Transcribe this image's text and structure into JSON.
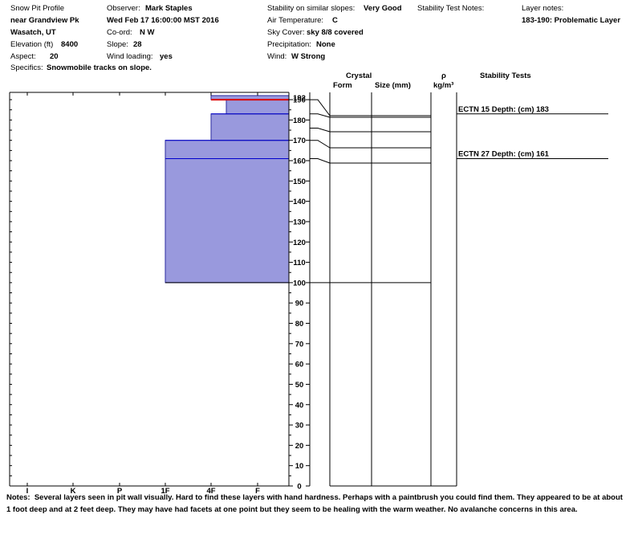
{
  "header": {
    "col1": [
      "Snow Pit Profile",
      "near Grandview Pk",
      "Wasatch, UT"
    ],
    "elevation_label": "Elevation (ft)",
    "elevation": "8400",
    "aspect_label": "Aspect:",
    "aspect": "20",
    "specifics_label": "Specifics:",
    "specifics": "Snowmobile tracks on slope.",
    "observer_label": "Observer:",
    "observer": "Mark Staples",
    "datetime": "Wed Feb 17 16:00:00 MST 2016",
    "coord_label": "Co-ord:",
    "coord": "N  W",
    "slope_label": "Slope:",
    "slope": "28",
    "wind_loading_label": "Wind loading:",
    "wind_loading": "yes",
    "stability_label": "Stability on similar slopes:",
    "stability": "Very Good",
    "air_temp_label": "Air Temperature:",
    "air_temp": "C",
    "sky_cover_label": "Sky Cover:",
    "sky_cover": "sky 8/8 covered",
    "precip_label": "Precipitation:",
    "precip": "None",
    "wind_label": "Wind:",
    "wind": "W Strong",
    "stability_notes_label": "Stability Test Notes:",
    "layer_notes_label": "Layer notes:",
    "layer_note": "183-190: Problematic Layer"
  },
  "columns": {
    "crystal": "Crystal",
    "form": "Form",
    "size": "Size (mm)",
    "rho": "ρ",
    "rho_unit": "kg/m³",
    "stability_tests": "Stability Tests"
  },
  "notes_label": "Notes:",
  "notes": "Several layers seen in pit wall visually. Hard to find these layers with hand hardness. Perhaps with a paintbrush you could find them. They appeared to be at about 1 foot deep and at 2 feet deep. They may have had facets at one point but they seem to be healing with the warm weather. No avalanche concerns in this area.",
  "stability_tests": [
    {
      "label": "ECTN 15  Depth: (cm) 183",
      "depth": 183
    },
    {
      "label": "ECTN 27  Depth: (cm) 161",
      "depth": 161
    }
  ],
  "chart_data": {
    "type": "bar",
    "x_categories": [
      "I",
      "K",
      "P",
      "1F",
      "4F",
      "F"
    ],
    "y_ticks": [
      0,
      10,
      20,
      30,
      40,
      50,
      60,
      70,
      80,
      90,
      100,
      110,
      120,
      130,
      140,
      150,
      160,
      170,
      180,
      190
    ],
    "y_top_label": "192",
    "ylim": [
      0,
      192
    ],
    "hardness_layers": [
      {
        "bottom": 100,
        "top": 170,
        "hardness_from": "1F",
        "hardness_to": "F+",
        "fill": "#9999dd"
      },
      {
        "bottom": 170,
        "top": 183,
        "hardness_from": "4F",
        "hardness_to": "F+",
        "fill": "#9999dd"
      },
      {
        "bottom": 183,
        "top": 190,
        "hardness_from": "4F+",
        "hardness_to": "F+",
        "fill": "#9999dd"
      },
      {
        "bottom": 190,
        "top": 192,
        "hardness_from": "4F",
        "hardness_to": "F+",
        "fill": "#9999dd"
      }
    ],
    "layer_boundaries": [
      {
        "depth": 190,
        "color": "#dd0000"
      },
      {
        "depth": 183,
        "color": "#0000cc"
      },
      {
        "depth": 170,
        "color": "#0000cc"
      },
      {
        "depth": 161,
        "color": "#0000cc"
      },
      {
        "depth": 100,
        "color": "#000000"
      }
    ],
    "connector_layers": [
      {
        "depth": 190,
        "row": 178
      },
      {
        "depth": 183,
        "row": 164
      },
      {
        "depth": 176,
        "row": 150
      },
      {
        "depth": 170,
        "row": 138
      },
      {
        "depth": 161,
        "row": 117
      },
      {
        "depth": 100,
        "row": 0
      }
    ]
  }
}
